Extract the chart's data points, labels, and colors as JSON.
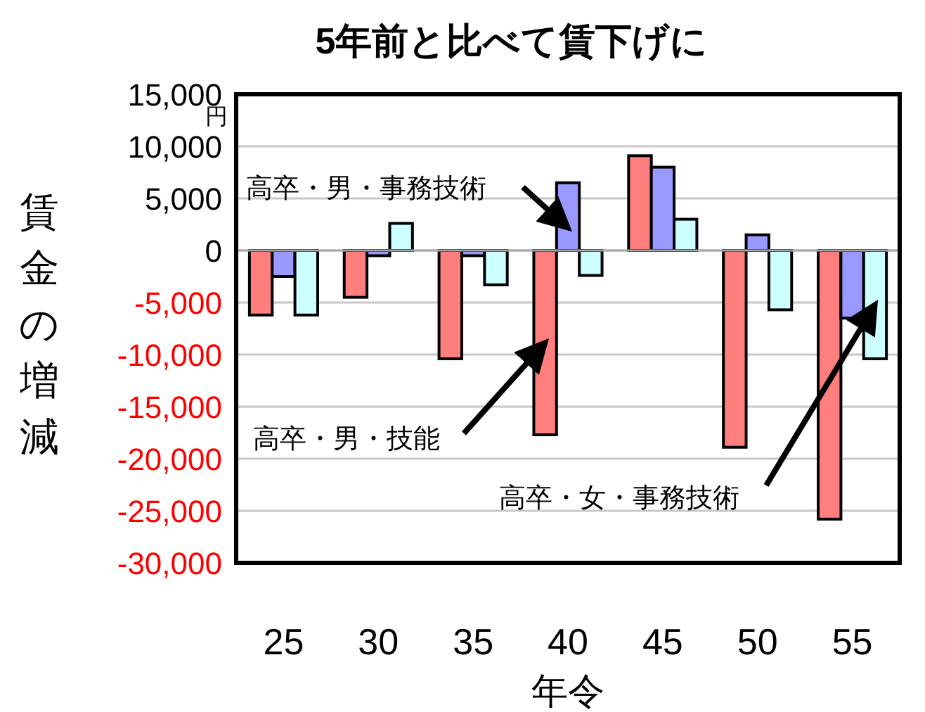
{
  "chart_data": {
    "type": "bar",
    "title": "5年前と比べて賃下げに",
    "xlabel": "年令",
    "ylabel": "賃金の増減",
    "annotations": [
      "円"
    ],
    "categories": [
      "25",
      "30",
      "35",
      "40",
      "45",
      "50",
      "55"
    ],
    "series": [
      {
        "name": "高卒・男・技能",
        "color": "#ff7f7f",
        "values": [
          -6200,
          -4500,
          -10400,
          -17700,
          9100,
          -18900,
          -25800
        ]
      },
      {
        "name": "高卒・男・事務技術",
        "color": "#9999ff",
        "values": [
          -2500,
          -500,
          -500,
          6500,
          8000,
          1500,
          -6500
        ]
      },
      {
        "name": "高卒・女・事務技術",
        "color": "#ccffff",
        "values": [
          -6200,
          2600,
          -3300,
          -2400,
          3000,
          -5700,
          -10400
        ]
      }
    ],
    "ylim": [
      -30000,
      15000
    ],
    "yticks": [
      {
        "value": 15000,
        "label": "15,000"
      },
      {
        "value": 10000,
        "label": "10,000"
      },
      {
        "value": 5000,
        "label": "5,000"
      },
      0,
      {
        "value": -5000,
        "label": "-5,000"
      },
      {
        "value": -10000,
        "label": "-10,000"
      },
      {
        "value": -15000,
        "label": "-15,000"
      },
      {
        "value": -20000,
        "label": "-20,000"
      },
      {
        "value": -25000,
        "label": "-25,000"
      },
      {
        "value": -30000,
        "label": "-30,000"
      }
    ],
    "grid": "y"
  }
}
